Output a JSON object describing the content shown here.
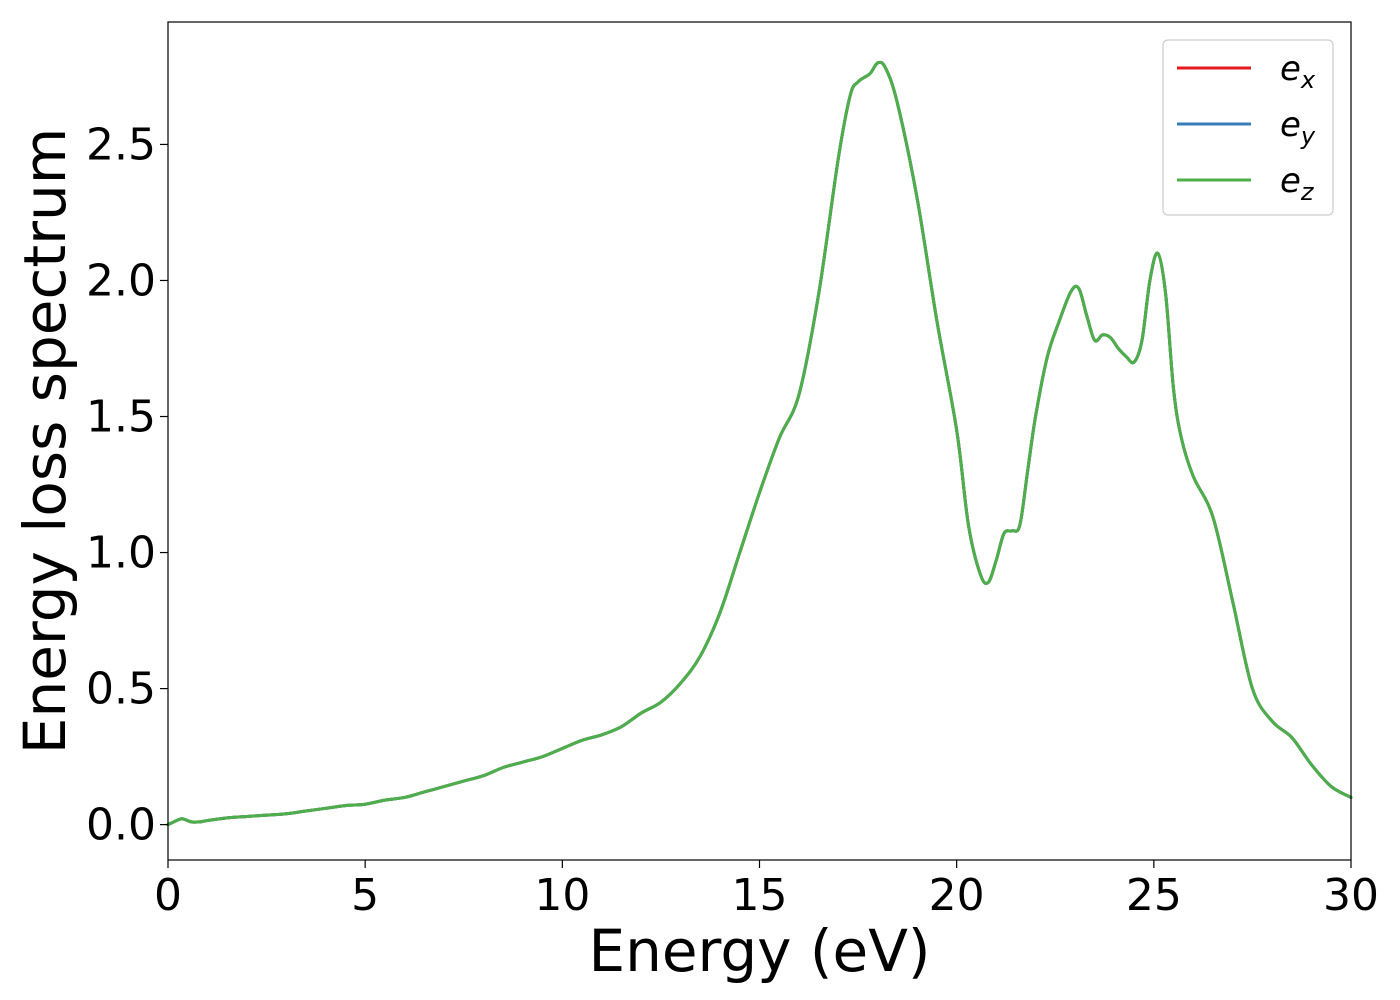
{
  "chart_data": {
    "type": "line",
    "title": "",
    "xlabel": "Energy (eV)",
    "ylabel": "Energy loss spectrum",
    "xlim": [
      0,
      30
    ],
    "ylim": [
      -0.13,
      2.95
    ],
    "xticks": [
      0,
      5,
      10,
      15,
      20,
      25,
      30
    ],
    "xtick_labels": [
      "0",
      "5",
      "10",
      "15",
      "20",
      "25",
      "30"
    ],
    "yticks": [
      0.0,
      0.5,
      1.0,
      1.5,
      2.0,
      2.5
    ],
    "ytick_labels": [
      "0.0",
      "0.5",
      "1.0",
      "1.5",
      "2.0",
      "2.5"
    ],
    "grid": false,
    "legend_position": "top-right",
    "x": [
      0,
      0.3,
      0.4,
      0.6,
      0.8,
      1,
      1.5,
      2,
      2.5,
      3,
      3.5,
      4,
      4.5,
      5,
      5.5,
      6,
      6.5,
      7,
      7.5,
      8,
      8.5,
      9,
      9.5,
      10,
      10.5,
      11,
      11.5,
      12,
      12.5,
      13,
      13.5,
      14,
      14.5,
      15,
      15.5,
      16,
      16.5,
      17,
      17.3,
      17.5,
      17.8,
      18,
      18.2,
      18.5,
      19,
      19.5,
      20,
      20.3,
      20.6,
      20.8,
      21,
      21.2,
      21.4,
      21.6,
      21.8,
      22,
      22.3,
      22.6,
      22.9,
      23.1,
      23.3,
      23.5,
      23.7,
      23.9,
      24.1,
      24.3,
      24.5,
      24.7,
      24.9,
      25.1,
      25.3,
      25.5,
      25.7,
      26,
      26.5,
      27,
      27.5,
      28,
      28.5,
      29,
      29.5,
      30
    ],
    "series": [
      {
        "name": "e_x",
        "label_main": "e",
        "label_sub": "x",
        "color": "#e41a1c",
        "values": [
          0.0,
          0.02,
          0.02,
          0.01,
          0.01,
          0.015,
          0.025,
          0.03,
          0.035,
          0.04,
          0.05,
          0.06,
          0.07,
          0.075,
          0.09,
          0.1,
          0.12,
          0.14,
          0.16,
          0.18,
          0.21,
          0.23,
          0.25,
          0.28,
          0.31,
          0.33,
          0.36,
          0.41,
          0.45,
          0.52,
          0.62,
          0.78,
          1.0,
          1.22,
          1.42,
          1.58,
          1.95,
          2.45,
          2.68,
          2.73,
          2.76,
          2.8,
          2.78,
          2.65,
          2.3,
          1.85,
          1.45,
          1.1,
          0.92,
          0.89,
          0.97,
          1.07,
          1.08,
          1.1,
          1.3,
          1.5,
          1.72,
          1.85,
          1.96,
          1.97,
          1.87,
          1.78,
          1.8,
          1.79,
          1.75,
          1.72,
          1.7,
          1.78,
          2.0,
          2.1,
          1.95,
          1.6,
          1.42,
          1.28,
          1.13,
          0.82,
          0.5,
          0.38,
          0.32,
          0.22,
          0.14,
          0.1
        ]
      },
      {
        "name": "e_y",
        "label_main": "e",
        "label_sub": "y",
        "color": "#377eb8",
        "values": [
          0.0,
          0.02,
          0.02,
          0.01,
          0.01,
          0.015,
          0.025,
          0.03,
          0.035,
          0.04,
          0.05,
          0.06,
          0.07,
          0.075,
          0.09,
          0.1,
          0.12,
          0.14,
          0.16,
          0.18,
          0.21,
          0.23,
          0.25,
          0.28,
          0.31,
          0.33,
          0.36,
          0.41,
          0.45,
          0.52,
          0.62,
          0.78,
          1.0,
          1.22,
          1.42,
          1.58,
          1.95,
          2.45,
          2.68,
          2.73,
          2.76,
          2.8,
          2.78,
          2.65,
          2.3,
          1.85,
          1.45,
          1.1,
          0.92,
          0.89,
          0.97,
          1.07,
          1.08,
          1.1,
          1.3,
          1.5,
          1.72,
          1.85,
          1.96,
          1.97,
          1.87,
          1.78,
          1.8,
          1.79,
          1.75,
          1.72,
          1.7,
          1.78,
          2.0,
          2.1,
          1.95,
          1.6,
          1.42,
          1.28,
          1.13,
          0.82,
          0.5,
          0.38,
          0.32,
          0.22,
          0.14,
          0.1
        ]
      },
      {
        "name": "e_z",
        "label_main": "e",
        "label_sub": "z",
        "color": "#4daf4a",
        "values": [
          0.0,
          0.02,
          0.02,
          0.01,
          0.01,
          0.015,
          0.025,
          0.03,
          0.035,
          0.04,
          0.05,
          0.06,
          0.07,
          0.075,
          0.09,
          0.1,
          0.12,
          0.14,
          0.16,
          0.18,
          0.21,
          0.23,
          0.25,
          0.28,
          0.31,
          0.33,
          0.36,
          0.41,
          0.45,
          0.52,
          0.62,
          0.78,
          1.0,
          1.22,
          1.42,
          1.58,
          1.95,
          2.45,
          2.68,
          2.73,
          2.76,
          2.8,
          2.78,
          2.65,
          2.3,
          1.85,
          1.45,
          1.1,
          0.92,
          0.89,
          0.97,
          1.07,
          1.08,
          1.1,
          1.3,
          1.5,
          1.72,
          1.85,
          1.96,
          1.97,
          1.87,
          1.78,
          1.8,
          1.79,
          1.75,
          1.72,
          1.7,
          1.78,
          2.0,
          2.1,
          1.95,
          1.6,
          1.42,
          1.28,
          1.13,
          0.82,
          0.5,
          0.38,
          0.32,
          0.22,
          0.14,
          0.1
        ]
      }
    ]
  }
}
